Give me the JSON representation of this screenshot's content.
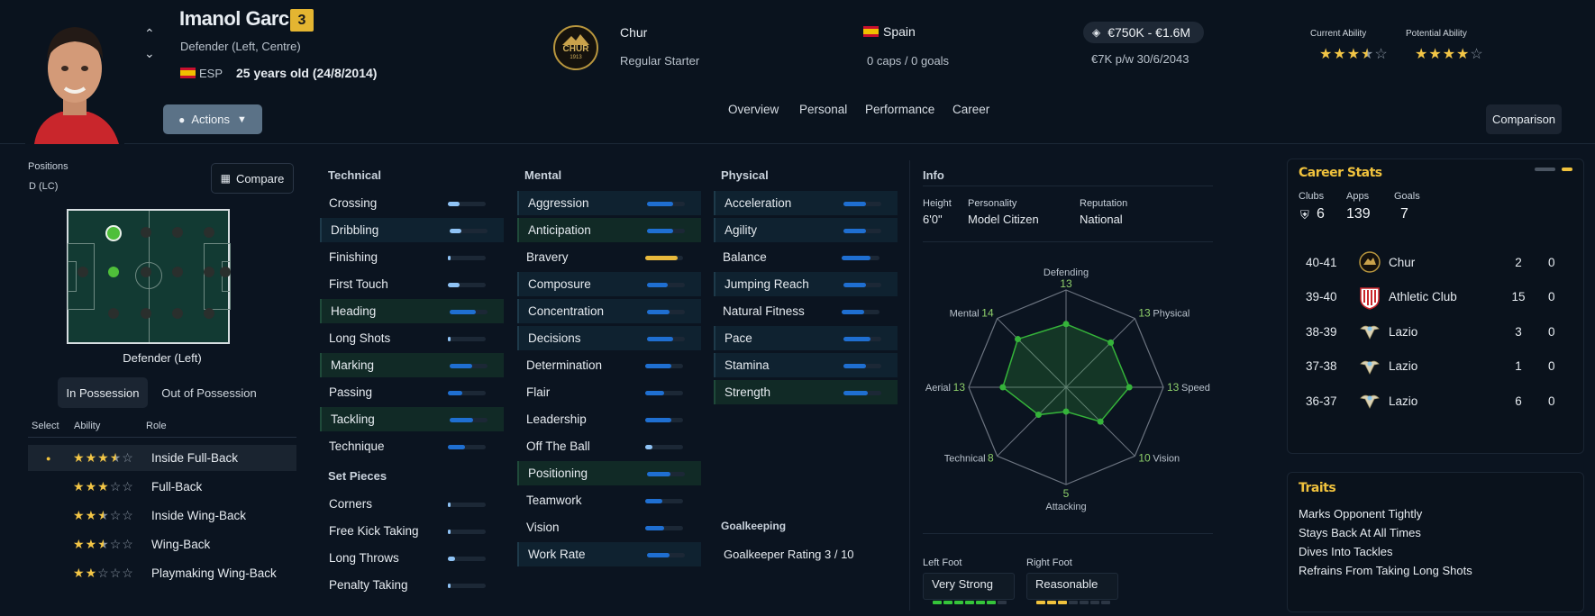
{
  "player": {
    "name": "Imanol García",
    "number": "3",
    "position": "Defender (Left, Centre)",
    "nation_code": "ESP",
    "age": "25 years old (24/8/2014)"
  },
  "actions_label": "Actions",
  "club": {
    "name": "Chur",
    "badge_text": "CHUR",
    "badge_year": "1913",
    "status": "Regular Starter"
  },
  "nationality": {
    "country": "Spain",
    "caps": "0 caps / 0 goals"
  },
  "value": {
    "range": "€750K - €1.6M",
    "wage": "€7K p/w 30/6/2043"
  },
  "ability": {
    "current_label": "Current Ability",
    "current_stars": 3.5,
    "potential_label": "Potential Ability",
    "potential_stars": 4
  },
  "tabs": [
    "Overview",
    "Personal",
    "Performance",
    "Career"
  ],
  "comparison_label": "Comparison",
  "positions": {
    "title": "Positions",
    "value": "D (LC)",
    "compare_label": "Compare",
    "role_label": "Defender (Left)"
  },
  "possession_tabs": [
    "In Possession",
    "Out of Possession"
  ],
  "roles_header": {
    "select": "Select",
    "ability": "Ability",
    "role": "Role"
  },
  "roles": [
    {
      "name": "Inside Full-Back",
      "stars": 3.5,
      "selected": true,
      "marker": "●"
    },
    {
      "name": "Full-Back",
      "stars": 3,
      "selected": false,
      "marker": ""
    },
    {
      "name": "Inside Wing-Back",
      "stars": 2.5,
      "selected": false,
      "marker": ""
    },
    {
      "name": "Wing-Back",
      "stars": 2.5,
      "selected": false,
      "marker": ""
    },
    {
      "name": "Playmaking Wing-Back",
      "stars": 2,
      "selected": false,
      "marker": ""
    }
  ],
  "technical": {
    "title": "Technical",
    "items": [
      {
        "name": "Crossing",
        "level": 0.3,
        "hl": "",
        "color": "#8fc3f5"
      },
      {
        "name": "Dribbling",
        "level": 0.3,
        "hl": "hl",
        "color": "#8fc3f5"
      },
      {
        "name": "Finishing",
        "level": 0.08,
        "hl": "",
        "color": "#8fc3f5"
      },
      {
        "name": "First Touch",
        "level": 0.3,
        "hl": "",
        "color": "#8fc3f5"
      },
      {
        "name": "Heading",
        "level": 0.68,
        "hl": "hlg",
        "color": "#1f6fd1"
      },
      {
        "name": "Long Shots",
        "level": 0.05,
        "hl": "",
        "color": "#8fc3f5"
      },
      {
        "name": "Marking",
        "level": 0.6,
        "hl": "hlg",
        "color": "#1f6fd1"
      },
      {
        "name": "Passing",
        "level": 0.38,
        "hl": "",
        "color": "#1f6fd1"
      },
      {
        "name": "Tackling",
        "level": 0.62,
        "hl": "hlg",
        "color": "#1f6fd1"
      },
      {
        "name": "Technique",
        "level": 0.45,
        "hl": "",
        "color": "#1f6fd1"
      }
    ]
  },
  "set_pieces": {
    "title": "Set Pieces",
    "items": [
      {
        "name": "Corners",
        "level": 0.04,
        "hl": "",
        "color": "#8fc3f5"
      },
      {
        "name": "Free Kick Taking",
        "level": 0.04,
        "hl": "",
        "color": "#8fc3f5"
      },
      {
        "name": "Long Throws",
        "level": 0.2,
        "hl": "",
        "color": "#8fc3f5"
      },
      {
        "name": "Penalty Taking",
        "level": 0.04,
        "hl": "",
        "color": "#8fc3f5"
      }
    ]
  },
  "mental": {
    "title": "Mental",
    "items": [
      {
        "name": "Aggression",
        "level": 0.68,
        "hl": "hl",
        "color": "#1f6fd1"
      },
      {
        "name": "Anticipation",
        "level": 0.68,
        "hl": "hlg",
        "color": "#1f6fd1"
      },
      {
        "name": "Bravery",
        "level": 0.86,
        "hl": "",
        "color": "#e8b93c"
      },
      {
        "name": "Composure",
        "level": 0.55,
        "hl": "hl",
        "color": "#1f6fd1"
      },
      {
        "name": "Concentration",
        "level": 0.6,
        "hl": "hl",
        "color": "#1f6fd1"
      },
      {
        "name": "Decisions",
        "level": 0.68,
        "hl": "hl",
        "color": "#1f6fd1"
      },
      {
        "name": "Determination",
        "level": 0.7,
        "hl": "",
        "color": "#1f6fd1"
      },
      {
        "name": "Flair",
        "level": 0.5,
        "hl": "",
        "color": "#1f6fd1"
      },
      {
        "name": "Leadership",
        "level": 0.7,
        "hl": "",
        "color": "#1f6fd1"
      },
      {
        "name": "Off The Ball",
        "level": 0.2,
        "hl": "",
        "color": "#8fc3f5"
      },
      {
        "name": "Positioning",
        "level": 0.62,
        "hl": "hlg",
        "color": "#1f6fd1"
      },
      {
        "name": "Teamwork",
        "level": 0.45,
        "hl": "",
        "color": "#1f6fd1"
      },
      {
        "name": "Vision",
        "level": 0.5,
        "hl": "",
        "color": "#1f6fd1"
      },
      {
        "name": "Work Rate",
        "level": 0.6,
        "hl": "hl",
        "color": "#1f6fd1"
      }
    ]
  },
  "physical": {
    "title": "Physical",
    "items": [
      {
        "name": "Acceleration",
        "level": 0.6,
        "hl": "hl",
        "color": "#1f6fd1"
      },
      {
        "name": "Agility",
        "level": 0.6,
        "hl": "hl",
        "color": "#1f6fd1"
      },
      {
        "name": "Balance",
        "level": 0.75,
        "hl": "",
        "color": "#1f6fd1"
      },
      {
        "name": "Jumping Reach",
        "level": 0.6,
        "hl": "hl",
        "color": "#1f6fd1"
      },
      {
        "name": "Natural Fitness",
        "level": 0.6,
        "hl": "",
        "color": "#1f6fd1"
      },
      {
        "name": "Pace",
        "level": 0.72,
        "hl": "hl",
        "color": "#1f6fd1"
      },
      {
        "name": "Stamina",
        "level": 0.6,
        "hl": "hl",
        "color": "#1f6fd1"
      },
      {
        "name": "Strength",
        "level": 0.65,
        "hl": "hlg",
        "color": "#1f6fd1"
      }
    ]
  },
  "goalkeeping": {
    "title": "Goalkeeping",
    "rating": "Goalkeeper Rating 3 / 10"
  },
  "info": {
    "title": "Info",
    "height_label": "Height",
    "height": "6'0\"",
    "personality_label": "Personality",
    "personality": "Model Citizen",
    "reputation_label": "Reputation",
    "reputation": "National"
  },
  "radar": {
    "axes": [
      {
        "name": "Defending",
        "value": "13"
      },
      {
        "name": "Physical",
        "value": "13"
      },
      {
        "name": "Speed",
        "value": "13"
      },
      {
        "name": "Vision",
        "value": "10"
      },
      {
        "name": "Attacking",
        "value": "5"
      },
      {
        "name": "Technical",
        "value": "8"
      },
      {
        "name": "Aerial",
        "value": "13"
      },
      {
        "name": "Mental",
        "value": "14"
      }
    ]
  },
  "feet": {
    "left_label": "Left Foot",
    "left": "Very Strong",
    "left_level": 6,
    "right_label": "Right Foot",
    "right": "Reasonable",
    "right_level": 3
  },
  "career_stats": {
    "title": "Career Stats",
    "clubs_label": "Clubs",
    "clubs": "6",
    "apps_label": "Apps",
    "apps": "139",
    "goals_label": "Goals",
    "goals": "7",
    "rows": [
      {
        "season": "40-41",
        "club": "Chur",
        "apps": "2",
        "goals": "0",
        "crest": "chur"
      },
      {
        "season": "39-40",
        "club": "Athletic Club",
        "apps": "15",
        "goals": "0",
        "crest": "athletic"
      },
      {
        "season": "38-39",
        "club": "Lazio",
        "apps": "3",
        "goals": "0",
        "crest": "lazio"
      },
      {
        "season": "37-38",
        "club": "Lazio",
        "apps": "1",
        "goals": "0",
        "crest": "lazio"
      },
      {
        "season": "36-37",
        "club": "Lazio",
        "apps": "6",
        "goals": "0",
        "crest": "lazio"
      }
    ]
  },
  "traits": {
    "title": "Traits",
    "items": [
      "Marks Opponent Tightly",
      "Stays Back At All Times",
      "Dives Into Tackles",
      "Refrains From Taking Long Shots"
    ]
  },
  "colors": {
    "accent_gold": "#f3c646",
    "bar_blue": "#1f6fd1",
    "radar_green": "#35b33a"
  }
}
